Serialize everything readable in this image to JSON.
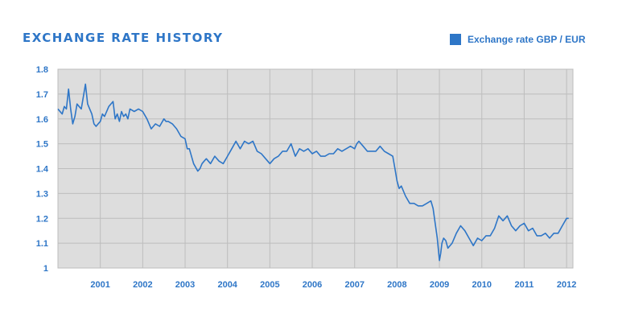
{
  "chart_data": {
    "type": "line",
    "title": "EXCHANGE RATE HISTORY",
    "xlabel": "",
    "ylabel": "",
    "xlim": [
      2000.0,
      2012.15
    ],
    "ylim": [
      1.0,
      1.8
    ],
    "yticks": [
      "1",
      "1.1",
      "1.2",
      "1.3",
      "1.4",
      "1.5",
      "1.6",
      "1.7",
      "1.8"
    ],
    "xticks": [
      "2001",
      "2002",
      "2003",
      "2004",
      "2005",
      "2006",
      "2007",
      "2008",
      "2009",
      "2010",
      "2011",
      "2012"
    ],
    "grid": true,
    "legend_position": "top-right",
    "series": [
      {
        "name": "Exchange rate GBP / EUR",
        "color": "#2e76c7",
        "x": [
          2000.0,
          2000.05,
          2000.1,
          2000.15,
          2000.2,
          2000.25,
          2000.3,
          2000.35,
          2000.4,
          2000.45,
          2000.5,
          2000.55,
          2000.6,
          2000.65,
          2000.7,
          2000.75,
          2000.8,
          2000.85,
          2000.9,
          2000.95,
          2001.0,
          2001.05,
          2001.1,
          2001.2,
          2001.3,
          2001.35,
          2001.4,
          2001.45,
          2001.5,
          2001.55,
          2001.6,
          2001.65,
          2001.7,
          2001.8,
          2001.9,
          2002.0,
          2002.1,
          2002.2,
          2002.3,
          2002.4,
          2002.5,
          2002.55,
          2002.6,
          2002.7,
          2002.8,
          2002.9,
          2003.0,
          2003.05,
          2003.1,
          2003.2,
          2003.3,
          2003.35,
          2003.4,
          2003.45,
          2003.5,
          2003.6,
          2003.7,
          2003.8,
          2003.9,
          2004.0,
          2004.1,
          2004.2,
          2004.3,
          2004.4,
          2004.5,
          2004.6,
          2004.7,
          2004.8,
          2004.9,
          2005.0,
          2005.1,
          2005.2,
          2005.3,
          2005.4,
          2005.5,
          2005.6,
          2005.7,
          2005.8,
          2005.9,
          2006.0,
          2006.1,
          2006.2,
          2006.3,
          2006.4,
          2006.5,
          2006.6,
          2006.7,
          2006.8,
          2006.9,
          2007.0,
          2007.05,
          2007.1,
          2007.2,
          2007.3,
          2007.4,
          2007.5,
          2007.6,
          2007.7,
          2007.8,
          2007.9,
          2007.95,
          2008.0,
          2008.05,
          2008.1,
          2008.2,
          2008.3,
          2008.4,
          2008.5,
          2008.6,
          2008.7,
          2008.8,
          2008.85,
          2008.9,
          2008.95,
          2009.0,
          2009.03,
          2009.06,
          2009.1,
          2009.15,
          2009.2,
          2009.3,
          2009.4,
          2009.5,
          2009.6,
          2009.7,
          2009.8,
          2009.9,
          2010.0,
          2010.1,
          2010.2,
          2010.3,
          2010.4,
          2010.5,
          2010.6,
          2010.7,
          2010.8,
          2010.9,
          2011.0,
          2011.1,
          2011.2,
          2011.3,
          2011.4,
          2011.5,
          2011.6,
          2011.7,
          2011.8,
          2011.9,
          2012.0,
          2012.05
        ],
        "values": [
          1.64,
          1.63,
          1.62,
          1.65,
          1.64,
          1.72,
          1.64,
          1.58,
          1.61,
          1.66,
          1.65,
          1.64,
          1.69,
          1.74,
          1.66,
          1.64,
          1.62,
          1.58,
          1.57,
          1.58,
          1.59,
          1.62,
          1.61,
          1.65,
          1.67,
          1.6,
          1.62,
          1.59,
          1.63,
          1.61,
          1.62,
          1.6,
          1.64,
          1.63,
          1.64,
          1.63,
          1.6,
          1.56,
          1.58,
          1.57,
          1.6,
          1.59,
          1.59,
          1.58,
          1.56,
          1.53,
          1.52,
          1.48,
          1.48,
          1.42,
          1.39,
          1.4,
          1.42,
          1.43,
          1.44,
          1.42,
          1.45,
          1.43,
          1.42,
          1.45,
          1.48,
          1.51,
          1.48,
          1.51,
          1.5,
          1.51,
          1.47,
          1.46,
          1.44,
          1.42,
          1.44,
          1.45,
          1.47,
          1.47,
          1.5,
          1.45,
          1.48,
          1.47,
          1.48,
          1.46,
          1.47,
          1.45,
          1.45,
          1.46,
          1.46,
          1.48,
          1.47,
          1.48,
          1.49,
          1.48,
          1.5,
          1.51,
          1.49,
          1.47,
          1.47,
          1.47,
          1.49,
          1.47,
          1.46,
          1.45,
          1.4,
          1.35,
          1.32,
          1.33,
          1.29,
          1.26,
          1.26,
          1.25,
          1.25,
          1.26,
          1.27,
          1.24,
          1.18,
          1.12,
          1.03,
          1.06,
          1.1,
          1.12,
          1.11,
          1.08,
          1.1,
          1.14,
          1.17,
          1.15,
          1.12,
          1.09,
          1.12,
          1.11,
          1.13,
          1.13,
          1.16,
          1.21,
          1.19,
          1.21,
          1.17,
          1.15,
          1.17,
          1.18,
          1.15,
          1.16,
          1.13,
          1.13,
          1.14,
          1.12,
          1.14,
          1.14,
          1.17,
          1.2,
          1.2
        ]
      }
    ]
  }
}
